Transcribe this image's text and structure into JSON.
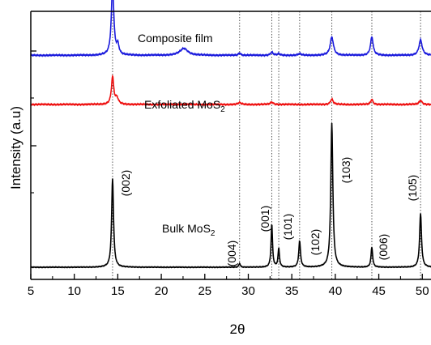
{
  "chart_data": {
    "type": "line",
    "xlabel": "2θ",
    "ylabel": "Intensity (a.u)",
    "xlim": [
      5,
      51
    ],
    "x_ticks": [
      5,
      10,
      15,
      20,
      25,
      30,
      35,
      40,
      45,
      50
    ],
    "x_tick_labels": [
      "5",
      "10",
      "15",
      "20",
      "25",
      "30",
      "35",
      "40",
      "45",
      "50"
    ],
    "y_ticks_labeled": false,
    "ylim": [
      0,
      100
    ],
    "reference_lines_x": [
      14.4,
      29.0,
      32.7,
      33.5,
      35.9,
      39.6,
      44.2,
      49.8
    ],
    "series": [
      {
        "name": "Bulk MoS2",
        "color": "#000000",
        "baseline": 0,
        "peaks": [
          {
            "x": 14.4,
            "height": 58,
            "width": 0.13
          },
          {
            "x": 29.0,
            "height": 2.5,
            "width": 0.1
          },
          {
            "x": 32.7,
            "height": 28,
            "width": 0.1
          },
          {
            "x": 33.5,
            "height": 12,
            "width": 0.1
          },
          {
            "x": 35.9,
            "height": 17,
            "width": 0.12
          },
          {
            "x": 39.6,
            "height": 94,
            "width": 0.14
          },
          {
            "x": 44.2,
            "height": 13,
            "width": 0.11
          },
          {
            "x": 49.8,
            "height": 35,
            "width": 0.13
          }
        ]
      },
      {
        "name": "Exfoliated MoS2",
        "color": "#ee1111",
        "baseline": 106,
        "peaks": [
          {
            "x": 14.4,
            "height": 18,
            "width": 0.16
          },
          {
            "x": 14.9,
            "height": 4,
            "width": 0.2
          },
          {
            "x": 29.0,
            "height": 1.2,
            "width": 0.2
          },
          {
            "x": 32.7,
            "height": 1.5,
            "width": 0.2
          },
          {
            "x": 39.6,
            "height": 3.5,
            "width": 0.18
          },
          {
            "x": 44.2,
            "height": 3.2,
            "width": 0.16
          },
          {
            "x": 49.8,
            "height": 2.6,
            "width": 0.2
          }
        ]
      },
      {
        "name": "Composite film",
        "color": "#1a1adc",
        "baseline": 138,
        "peaks": [
          {
            "x": 14.4,
            "height": 45,
            "width": 0.17
          },
          {
            "x": 15.0,
            "height": 6,
            "width": 0.16
          },
          {
            "x": 22.6,
            "height": 4.5,
            "width": 0.55
          },
          {
            "x": 29.0,
            "height": 1.5,
            "width": 0.15
          },
          {
            "x": 32.7,
            "height": 2,
            "width": 0.18
          },
          {
            "x": 33.5,
            "height": 1,
            "width": 0.15
          },
          {
            "x": 35.9,
            "height": 1,
            "width": 0.2
          },
          {
            "x": 39.6,
            "height": 12,
            "width": 0.22
          },
          {
            "x": 44.2,
            "height": 12,
            "width": 0.18
          },
          {
            "x": 49.8,
            "height": 10,
            "width": 0.22
          }
        ]
      }
    ],
    "series_labels": [
      {
        "series": 2,
        "text": "Composite film",
        "sub": ""
      },
      {
        "series": 1,
        "text": "Exfoliated MoS",
        "sub": "2"
      },
      {
        "series": 0,
        "text": "Bulk MoS",
        "sub": "2"
      }
    ],
    "peak_annotations": [
      {
        "x": 14.4,
        "label": "(002)"
      },
      {
        "x": 29.0,
        "label": "(004)"
      },
      {
        "x": 32.7,
        "label": "(001)"
      },
      {
        "x": 33.5,
        "label": "(101)"
      },
      {
        "x": 35.9,
        "label": "(102)"
      },
      {
        "x": 39.6,
        "label": "(103)"
      },
      {
        "x": 44.2,
        "label": "(006)"
      },
      {
        "x": 49.8,
        "label": "(105)"
      }
    ]
  }
}
